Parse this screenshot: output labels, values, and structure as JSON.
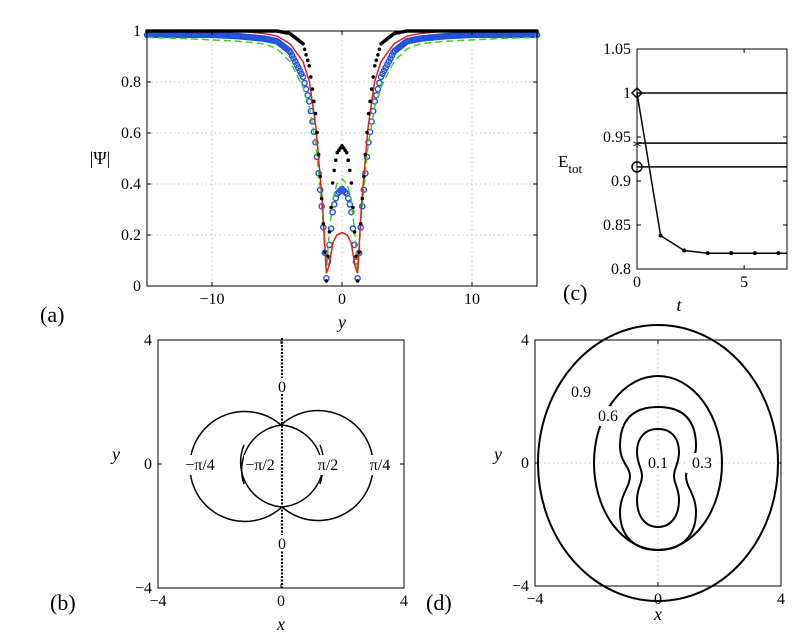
{
  "chart_data": [
    {
      "panel_label": "(a)",
      "type": "line",
      "xlabel": "y",
      "ylabel": "|Ψ|",
      "xlim": [
        -15,
        15
      ],
      "ylim": [
        0,
        1
      ],
      "xticks": [
        "−10",
        "0",
        "10"
      ],
      "xtick_values": [
        -10,
        0,
        10
      ],
      "yticks": [
        "0",
        "0.2",
        "0.4",
        "0.6",
        "0.8",
        "1"
      ],
      "ytick_values": [
        0,
        0.2,
        0.4,
        0.6,
        0.8,
        1
      ],
      "grid": true,
      "x": [
        -15,
        -12,
        -10,
        -8,
        -6,
        -5,
        -4,
        -3,
        -2.5,
        -2,
        -1.5,
        -1.2,
        -1,
        -0.7,
        -0.4,
        0,
        0.4,
        0.7,
        1,
        1.2,
        1.5,
        2,
        2.5,
        3,
        4,
        5,
        6,
        8,
        10,
        12,
        15
      ],
      "series": [
        {
          "color": "#000000",
          "style": "dots",
          "values": [
            1,
            1,
            1,
            1,
            1,
            1,
            0.99,
            0.95,
            0.86,
            0.66,
            0.3,
            0.02,
            0.18,
            0.42,
            0.52,
            0.55,
            0.52,
            0.42,
            0.18,
            0.02,
            0.3,
            0.66,
            0.86,
            0.95,
            0.99,
            1,
            1,
            1,
            1,
            1,
            1
          ]
        },
        {
          "color": "#e02020",
          "style": "solid",
          "values": [
            1,
            1,
            1,
            1,
            0.99,
            0.98,
            0.95,
            0.88,
            0.8,
            0.62,
            0.32,
            0.05,
            0.08,
            0.17,
            0.2,
            0.21,
            0.2,
            0.17,
            0.08,
            0.05,
            0.32,
            0.62,
            0.8,
            0.88,
            0.95,
            0.98,
            0.99,
            1,
            1,
            1,
            1
          ]
        },
        {
          "color": "#40d020",
          "style": "dashed",
          "values": [
            0.975,
            0.97,
            0.965,
            0.96,
            0.95,
            0.93,
            0.88,
            0.78,
            0.7,
            0.55,
            0.28,
            0.05,
            0.2,
            0.34,
            0.4,
            0.42,
            0.4,
            0.34,
            0.2,
            0.05,
            0.28,
            0.55,
            0.7,
            0.78,
            0.88,
            0.93,
            0.95,
            0.96,
            0.965,
            0.97,
            0.975
          ]
        },
        {
          "color": "#2050e0",
          "style": "circles",
          "values": [
            0.985,
            0.985,
            0.985,
            0.98,
            0.97,
            0.96,
            0.92,
            0.82,
            0.72,
            0.55,
            0.28,
            0.03,
            0.14,
            0.3,
            0.36,
            0.38,
            0.36,
            0.3,
            0.14,
            0.03,
            0.28,
            0.55,
            0.72,
            0.82,
            0.92,
            0.96,
            0.97,
            0.98,
            0.985,
            0.985,
            0.985
          ]
        }
      ]
    },
    {
      "panel_label": "(c)",
      "type": "line",
      "xlabel": "t",
      "ylabel": "E",
      "ylabel_sub": "tot",
      "xlim": [
        0,
        7
      ],
      "ylim": [
        0.8,
        1.05
      ],
      "xticks": [
        "0",
        "5"
      ],
      "xtick_values": [
        0,
        5
      ],
      "yticks": [
        "0.8",
        "0.85",
        "0.9",
        "0.95",
        "1",
        "1.05"
      ],
      "ytick_values": [
        0.8,
        0.85,
        0.9,
        0.95,
        1,
        1.05
      ],
      "grid": false,
      "hlines": [
        {
          "y": 1.0,
          "marker": "diamond"
        },
        {
          "y": 0.943,
          "marker": "star"
        },
        {
          "y": 0.916,
          "marker": "circle"
        }
      ],
      "decay": {
        "x": [
          0,
          1.1,
          2.2,
          3.3,
          4.4,
          5.5,
          6.6,
          7
        ],
        "y": [
          1.0,
          0.838,
          0.821,
          0.818,
          0.818,
          0.818,
          0.818,
          0.818
        ]
      }
    },
    {
      "panel_label": "(b)",
      "type": "contour",
      "xlabel": "x",
      "ylabel": "y",
      "xlim": [
        -4,
        4
      ],
      "ylim": [
        -4,
        4
      ],
      "xticks": [
        "−4",
        "0",
        "4"
      ],
      "xtick_values": [
        -4,
        0,
        4
      ],
      "yticks": [
        "−4",
        "0",
        "4"
      ],
      "ytick_values": [
        -4,
        0,
        4
      ],
      "grid": false,
      "levels": [
        "−π/4",
        "−π/2",
        "π/2",
        "π/4",
        "0",
        "0"
      ]
    },
    {
      "panel_label": "(d)",
      "type": "contour",
      "xlabel": "x",
      "ylabel": "y",
      "xlim": [
        -4,
        4
      ],
      "ylim": [
        -4,
        4
      ],
      "xticks": [
        "−4",
        "0",
        "4"
      ],
      "xtick_values": [
        -4,
        0,
        4
      ],
      "yticks": [
        "−4",
        "0",
        "4"
      ],
      "ytick_values": [
        -4,
        0,
        4
      ],
      "grid": true,
      "levels": [
        "0.9",
        "0.6",
        "0.1",
        "0.3"
      ]
    }
  ]
}
